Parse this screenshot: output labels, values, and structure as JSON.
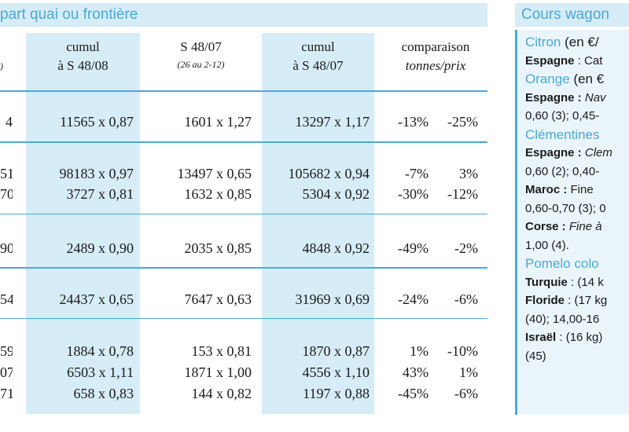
{
  "left_header": "part quai ou frontière",
  "columns": {
    "edge": ")",
    "cumul_08": [
      "cumul",
      "à S 48/08"
    ],
    "s4807": [
      "S 48/07",
      "(26 au 2-12)"
    ],
    "cumul_07": [
      "cumul",
      "à S 48/07"
    ],
    "comparaison": [
      "comparaison",
      "tonnes/prix"
    ]
  },
  "rows": [
    {
      "edge": "4",
      "cumul_08": "11565 x 0,87",
      "s4807": "1601 x 1,27",
      "cumul_07": "13297 x 1,17",
      "tonnes": "-13%",
      "prix": "-25%"
    },
    {
      "edge": "51",
      "cumul_08": "98183 x 0,97",
      "s4807": "13497 x 0,65",
      "cumul_07": "105682 x 0,94",
      "tonnes": "-7%",
      "prix": "3%"
    },
    {
      "edge": "70",
      "cumul_08": "3727 x 0,81",
      "s4807": "1632 x 0,85",
      "cumul_07": "5304 x 0,92",
      "tonnes": "-30%",
      "prix": "-12%"
    },
    {
      "edge": "90",
      "cumul_08": "2489 x 0,90",
      "s4807": "2035 x 0,85",
      "cumul_07": "4848 x 0,92",
      "tonnes": "-49%",
      "prix": "-2%"
    },
    {
      "edge": "54",
      "cumul_08": "24437 x 0,65",
      "s4807": "7647 x 0,63",
      "cumul_07": "31969 x 0,69",
      "tonnes": "-24%",
      "prix": "-6%"
    },
    {
      "edge": "59",
      "cumul_08": "1884 x 0,78",
      "s4807": "153 x 0,81",
      "cumul_07": "1870 x 0,87",
      "tonnes": "1%",
      "prix": "-10%"
    },
    {
      "edge": "07",
      "cumul_08": "6503 x 1,11",
      "s4807": "1871 x 1,00",
      "cumul_07": "4556 x 1,10",
      "tonnes": "43%",
      "prix": "1%"
    },
    {
      "edge": "71",
      "cumul_08": "658 x 0,83",
      "s4807": "144 x 0,82",
      "cumul_07": "1197 x 0,88",
      "tonnes": "-45%",
      "prix": "-6%"
    }
  ],
  "right_header": "Cours wagon",
  "right_lines": [
    {
      "cat": "Citron",
      "unit": " (en €/"
    },
    {
      "b": "Espagne",
      "t": " : Cat"
    },
    {
      "cat": "Orange",
      "unit": " (en €"
    },
    {
      "b": "Espagne :",
      "i": " Nav"
    },
    {
      "t": "0,60 (3); 0,45-"
    },
    {
      "cat": "Clémentines"
    },
    {
      "b": "Espagne :",
      "i": " Clem"
    },
    {
      "t": "0,60 (2); 0,40-"
    },
    {
      "b": "Maroc :",
      "t": " Fine"
    },
    {
      "t": "0,60-0,70 (3); 0"
    },
    {
      "b": "Corse :",
      "i": " Fine à"
    },
    {
      "t": "1,00 (4)."
    },
    {
      "cat": "Pomelo colo"
    },
    {
      "b": "Turquie",
      "t": " : (14 k"
    },
    {
      "b": "Floride",
      "t": " : (17 kg"
    },
    {
      "t": "(40); 14,00-16"
    },
    {
      "b": "Israël",
      "t": " : (16 kg)"
    },
    {
      "t": "(45)"
    }
  ]
}
